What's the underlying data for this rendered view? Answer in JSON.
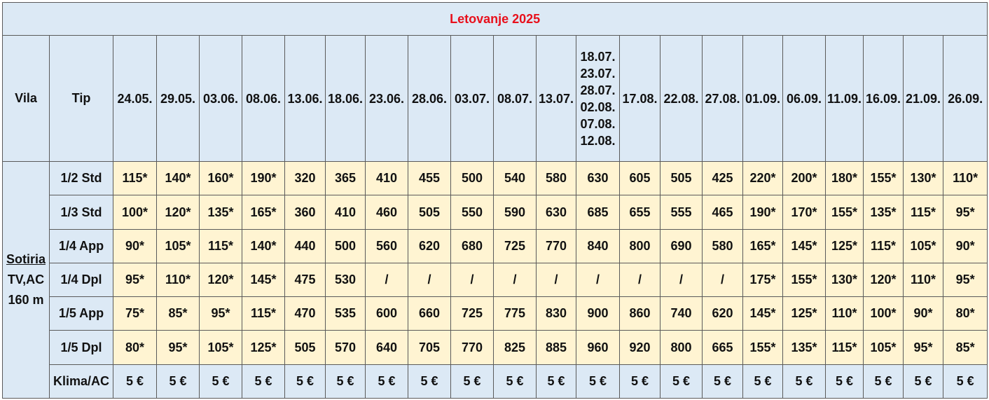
{
  "title": "Letovanje 2025",
  "headers": {
    "vila": "Vila",
    "tip": "Tip"
  },
  "dates": [
    "24.05.",
    "29.05.",
    "03.06.",
    "08.06.",
    "13.06.",
    "18.06.",
    "23.06.",
    "28.06.",
    "03.07.",
    "08.07.",
    "13.07.",
    "18.07. 23.07. 28.07. 02.08. 07.08. 12.08.",
    "17.08.",
    "22.08.",
    "27.08.",
    "01.09.",
    "06.09.",
    "11.09.",
    "16.09.",
    "21.09.",
    "26.09."
  ],
  "villa": {
    "name": "Sotiria",
    "features": "TV,AC",
    "distance": "160 m"
  },
  "rows": [
    {
      "tip": "1/2 Std",
      "prices": [
        "115*",
        "140*",
        "160*",
        "190*",
        "320",
        "365",
        "410",
        "455",
        "500",
        "540",
        "580",
        "630",
        "605",
        "505",
        "425",
        "220*",
        "200*",
        "180*",
        "155*",
        "130*",
        "110*"
      ]
    },
    {
      "tip": "1/3 Std",
      "prices": [
        "100*",
        "120*",
        "135*",
        "165*",
        "360",
        "410",
        "460",
        "505",
        "550",
        "590",
        "630",
        "685",
        "655",
        "555",
        "465",
        "190*",
        "170*",
        "155*",
        "135*",
        "115*",
        "95*"
      ]
    },
    {
      "tip": "1/4 App",
      "prices": [
        "90*",
        "105*",
        "115*",
        "140*",
        "440",
        "500",
        "560",
        "620",
        "680",
        "725",
        "770",
        "840",
        "800",
        "690",
        "580",
        "165*",
        "145*",
        "125*",
        "115*",
        "105*",
        "90*"
      ]
    },
    {
      "tip": "1/4 Dpl",
      "prices": [
        "95*",
        "110*",
        "120*",
        "145*",
        "475",
        "530",
        "/",
        "/",
        "/",
        "/",
        "/",
        "/",
        "/",
        "/",
        "/",
        "175*",
        "155*",
        "130*",
        "120*",
        "110*",
        "95*"
      ]
    },
    {
      "tip": "1/5 App",
      "prices": [
        "75*",
        "85*",
        "95*",
        "115*",
        "470",
        "535",
        "600",
        "660",
        "725",
        "775",
        "830",
        "900",
        "860",
        "740",
        "620",
        "145*",
        "125*",
        "110*",
        "100*",
        "90*",
        "80*"
      ]
    },
    {
      "tip": "1/5 Dpl",
      "prices": [
        "80*",
        "95*",
        "105*",
        "125*",
        "505",
        "570",
        "640",
        "705",
        "770",
        "825",
        "885",
        "960",
        "920",
        "800",
        "665",
        "155*",
        "135*",
        "115*",
        "105*",
        "95*",
        "85*"
      ]
    }
  ],
  "klima": {
    "label": "Klima/AC",
    "prices": [
      "5 €",
      "5 €",
      "5 €",
      "5 €",
      "5 €",
      "5 €",
      "5 €",
      "5 €",
      "5 €",
      "5 €",
      "5 €",
      "5 €",
      "5 €",
      "5 €",
      "5 €",
      "5 €",
      "5 €",
      "5 €",
      "5 €",
      "5 €",
      "5 €"
    ]
  },
  "colors": {
    "header_bg": "#dce9f5",
    "cell_bg": "#fff4d2",
    "title_text": "#e8101c"
  }
}
